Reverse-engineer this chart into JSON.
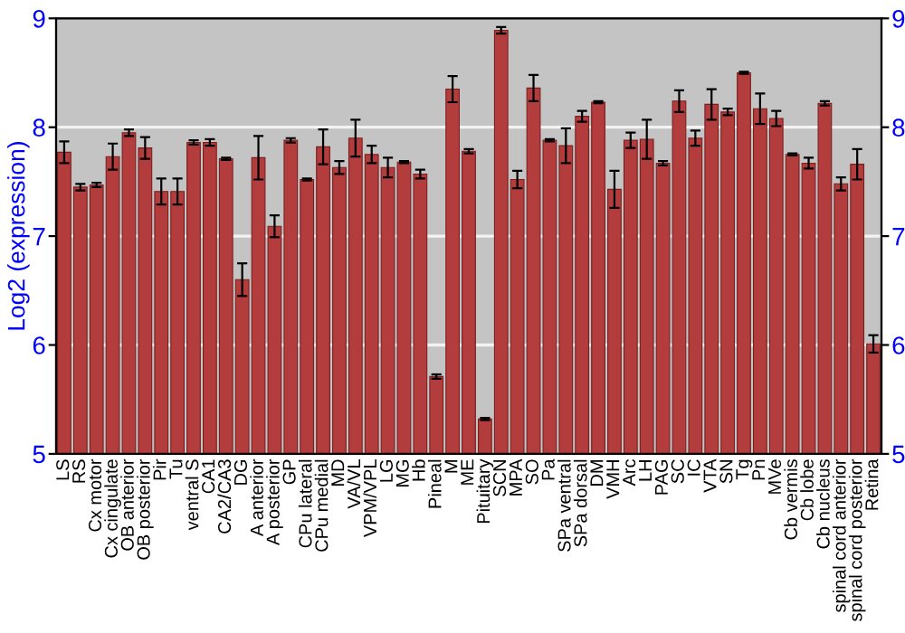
{
  "chart_data": {
    "type": "bar",
    "ylabel": "Log2 (expression)",
    "categories": [
      "LS",
      "RS",
      "Cx motor",
      "Cx cingulate",
      "OB anterior",
      "OB posterior",
      "Pir",
      "Tu",
      "ventral S",
      "CA1",
      "CA2/CA3",
      "DG",
      "A anterior",
      "A posterior",
      "GP",
      "CPu lateral",
      "CPu medial",
      "MD",
      "VA/VL",
      "VPM/VPL",
      "LG",
      "MG",
      "Hb",
      "Pineal",
      "M",
      "ME",
      "Pituitary",
      "SCN",
      "MPA",
      "SO",
      "Pa",
      "SPa ventral",
      "SPa dorsal",
      "DM",
      "VMH",
      "Arc",
      "LH",
      "PAG",
      "SC",
      "IC",
      "VTA",
      "SN",
      "Tg",
      "Pn",
      "MVe",
      "Cb vermis",
      "Cb lobe",
      "Cb nucleus",
      "spinal cord anterior",
      "spinal cord posterior",
      "Retina"
    ],
    "values": [
      7.77,
      7.45,
      7.47,
      7.73,
      7.95,
      7.81,
      7.41,
      7.41,
      7.86,
      7.86,
      7.71,
      6.6,
      7.72,
      7.09,
      7.88,
      7.52,
      7.82,
      7.63,
      7.9,
      7.75,
      7.63,
      7.68,
      7.57,
      5.71,
      8.35,
      7.78,
      5.32,
      8.89,
      7.52,
      8.36,
      7.88,
      7.83,
      8.1,
      8.23,
      7.43,
      7.88,
      7.89,
      7.67,
      8.24,
      7.9,
      8.21,
      8.14,
      8.5,
      8.17,
      8.08,
      7.75,
      7.67,
      8.22,
      7.48,
      7.66,
      6.01
    ],
    "errors": [
      0.1,
      0.03,
      0.02,
      0.12,
      0.03,
      0.1,
      0.12,
      0.12,
      0.02,
      0.03,
      0.01,
      0.15,
      0.2,
      0.1,
      0.02,
      0.01,
      0.16,
      0.06,
      0.17,
      0.08,
      0.09,
      0.01,
      0.04,
      0.02,
      0.12,
      0.02,
      0.01,
      0.03,
      0.08,
      0.12,
      0.01,
      0.16,
      0.05,
      0.01,
      0.17,
      0.07,
      0.18,
      0.02,
      0.1,
      0.07,
      0.14,
      0.03,
      0.01,
      0.14,
      0.07,
      0.01,
      0.05,
      0.02,
      0.06,
      0.14,
      0.08
    ],
    "color": "#b33c3c",
    "ylim": [
      5,
      9
    ],
    "yticks": [
      5,
      6,
      7,
      8,
      9
    ],
    "y2lim": [
      5,
      9
    ],
    "y2ticks": [
      5,
      6,
      7,
      8,
      9
    ],
    "grid": "y"
  }
}
